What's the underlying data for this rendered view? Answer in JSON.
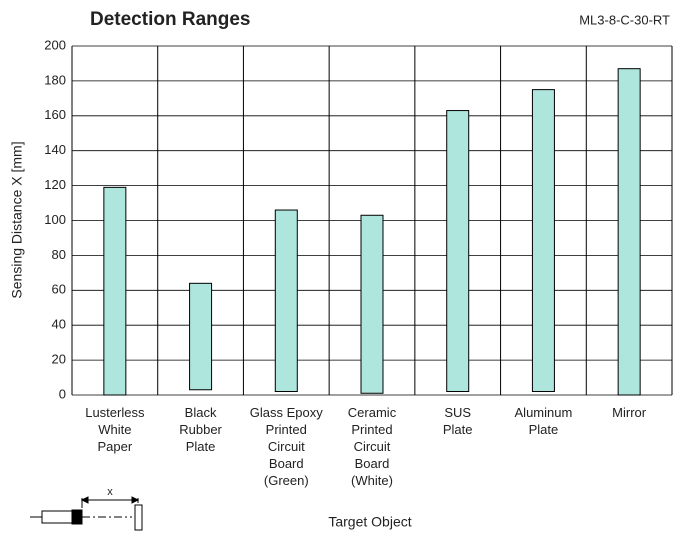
{
  "chart_data": {
    "type": "range_bar",
    "title": "Detection Ranges",
    "subtitle": "ML3-8-C-30-RT",
    "y_label": "Sensing Distance X [mm]",
    "x_label": "Target Object",
    "diagram_label": "x",
    "categories": [
      "Lusterless\nWhite\nPaper",
      "Black\nRubber\nPlate",
      "Glass Epoxy\nPrinted\nCircuit\nBoard\n(Green)",
      "Ceramic\nPrinted\nCircuit\nBoard\n(White)",
      "SUS\nPlate",
      "Aluminum\nPlate",
      "Mirror"
    ],
    "low": [
      0,
      3,
      2,
      1,
      2,
      2,
      0
    ],
    "high": [
      119,
      64,
      106,
      103,
      163,
      175,
      187
    ],
    "color": "#aee5dc",
    "ylim": [
      0,
      200
    ],
    "yticks": [
      0,
      20,
      40,
      60,
      80,
      100,
      120,
      140,
      160,
      180,
      200
    ],
    "grid": true
  }
}
